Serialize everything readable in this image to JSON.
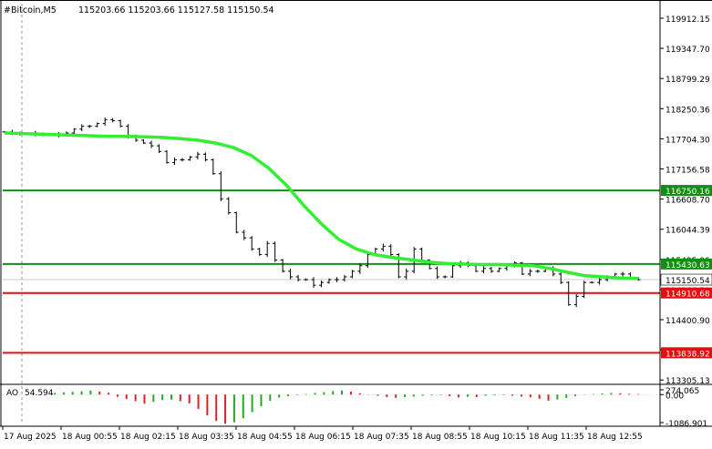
{
  "header": {
    "symbol_text": "#Bitcoin,M5",
    "ohlc_text": "115203.66 115203.66 115127.58 115150.54"
  },
  "chart_data": {
    "type": "bar",
    "symbol": "#Bitcoin",
    "timeframe": "M5",
    "ohlc": {
      "open": 115203.66,
      "high": 115203.66,
      "low": 115127.58,
      "close": 115150.54
    },
    "y_range": [
      113305,
      120100
    ],
    "price_axis_ticks": [
      "119912.15",
      "119347.70",
      "118799.29",
      "118250.36",
      "117704.30",
      "117156.58",
      "116608.70",
      "116044.39",
      "115495.06",
      "114946.50",
      "114400.90",
      "113852.96",
      "113305.13"
    ],
    "time_axis_labels": [
      "17 Aug 2025",
      "18 Aug 00:55",
      "18 Aug 02:15",
      "18 Aug 03:35",
      "18 Aug 04:55",
      "18 Aug 06:15",
      "18 Aug 07:35",
      "18 Aug 08:55",
      "18 Aug 10:15",
      "18 Aug 11:35",
      "18 Aug 12:55"
    ],
    "horizontal_levels": [
      {
        "price": 116750.16,
        "label": "116750.16",
        "color": "#109010"
      },
      {
        "price": 115430.63,
        "label": "115430.63",
        "color": "#109010"
      },
      {
        "price": 114910.68,
        "label": "114910.68",
        "color": "#e01010"
      },
      {
        "price": 113838.92,
        "label": "113838.92",
        "color": "#e01010"
      }
    ],
    "current_price": {
      "price": 115150.54,
      "label": "115150.54"
    },
    "close_series": [
      117800,
      117780,
      117760,
      117780,
      117760,
      117750,
      117740,
      117760,
      117780,
      117850,
      117900,
      117900,
      117950,
      118020,
      118000,
      117900,
      117720,
      117650,
      117600,
      117550,
      117450,
      117250,
      117300,
      117300,
      117350,
      117400,
      117300,
      117050,
      116600,
      116350,
      116000,
      115900,
      115700,
      115600,
      115800,
      115500,
      115300,
      115200,
      115150,
      115150,
      115050,
      115100,
      115150,
      115150,
      115200,
      115300,
      115400,
      115600,
      115700,
      115750,
      115600,
      115200,
      115300,
      115700,
      115500,
      115350,
      115200,
      115200,
      115400,
      115450,
      115400,
      115300,
      115350,
      115300,
      115350,
      115400,
      115450,
      115250,
      115300,
      115300,
      115350,
      115250,
      115100,
      114700,
      114850,
      115100,
      115100,
      115150,
      115200,
      115250,
      115250,
      115180,
      115150
    ],
    "moving_average": [
      117780,
      117770,
      117760,
      117750,
      117740,
      117730,
      117720,
      117720,
      117710,
      117700,
      117680,
      117650,
      117600,
      117520,
      117380,
      117150,
      116850,
      116480,
      116150,
      115870,
      115700,
      115600,
      115550,
      115510,
      115470,
      115440,
      115430,
      115420,
      115420,
      115410,
      115400,
      115350,
      115280,
      115220,
      115200,
      115180,
      115170
    ],
    "indicator": {
      "name": "AO",
      "value_text": "54.594",
      "axis_ticks": [
        "274.065",
        "0.00",
        "-1086.901"
      ],
      "range": [
        -1086.901,
        274.065
      ],
      "values": [
        60,
        80,
        100,
        120,
        150,
        110,
        70,
        -80,
        -160,
        -240,
        -330,
        -260,
        -200,
        -180,
        -240,
        -320,
        -520,
        -760,
        -960,
        -1060,
        -1010,
        -860,
        -640,
        -420,
        -230,
        -110,
        -60,
        -20,
        20,
        60,
        90,
        130,
        150,
        110,
        50,
        10,
        -40,
        -90,
        -120,
        -90,
        -70,
        -40,
        -30,
        -20,
        -60,
        -100,
        -80,
        -90,
        -40,
        -30,
        -20,
        -40,
        -70,
        -100,
        -150,
        -220,
        -180,
        -120,
        -60,
        -10,
        20,
        40,
        60,
        50,
        30,
        20
      ]
    }
  }
}
